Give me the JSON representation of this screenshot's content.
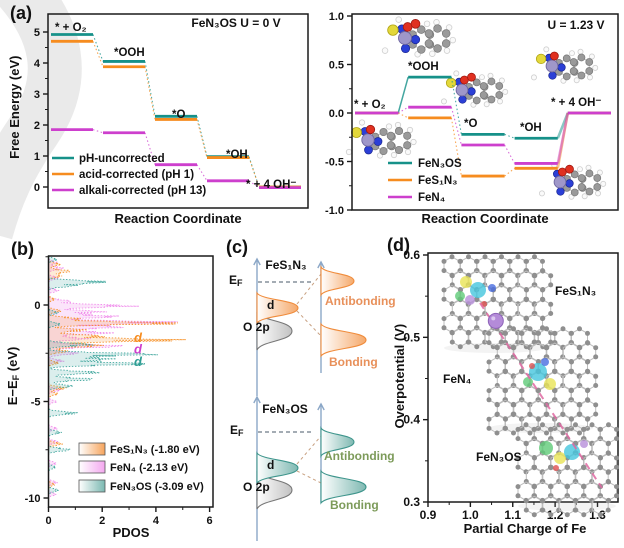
{
  "figure_labels": {
    "a": "(a)",
    "b": "(b)",
    "c": "(c)",
    "d": "(d)"
  },
  "chart_data": [
    {
      "id": "free-energy-u0",
      "type": "line",
      "panel": "a-left",
      "title": "FeN₃OS  U = 0 V",
      "xlabel": "Reaction Coordinate",
      "ylabel": "Free Energy (eV)",
      "ylim": [
        -0.45,
        5.6
      ],
      "yticks": [
        0,
        1,
        2,
        3,
        4,
        5
      ],
      "grid": false,
      "categories": [
        "* + O₂",
        "*OOH",
        "*O",
        "*OH",
        "* + 4 OH⁻"
      ],
      "series": [
        {
          "name": "pH-uncorrected",
          "color": "#169189",
          "values": [
            4.92,
            4.05,
            2.28,
            0.98,
            0.0
          ]
        },
        {
          "name": "acid-corrected (pH 1)",
          "color": "#f68c1f",
          "values": [
            4.7,
            3.88,
            2.18,
            0.95,
            0.0
          ]
        },
        {
          "name": "alkali-corrected (pH 13)",
          "color": "#cd3fcd",
          "values": [
            1.85,
            1.75,
            0.72,
            0.2,
            -0.02
          ]
        }
      ],
      "legend_position": "lower-left"
    },
    {
      "id": "free-energy-u123",
      "type": "line",
      "panel": "a-right",
      "title": "U = 1.23 V",
      "xlabel": "Reaction Coordinate",
      "ylabel": "",
      "ylim": [
        -1.05,
        1.02
      ],
      "yticks": [
        "1.0",
        "0.5",
        "0.0",
        "-0.5",
        "-1.0"
      ],
      "grid": false,
      "categories": [
        "* + O₂",
        "*OOH",
        "*O",
        "*OH",
        "* + 4 OH⁻"
      ],
      "series": [
        {
          "name": "FeN₃OS",
          "color": "#169189",
          "values": [
            0.0,
            0.37,
            -0.22,
            -0.26,
            0.0
          ]
        },
        {
          "name": "FeS₁N₃",
          "color": "#f68c1f",
          "values": [
            0.0,
            -0.05,
            -0.65,
            -0.57,
            0.0
          ]
        },
        {
          "name": "FeN₄",
          "color": "#cd3fcd",
          "values": [
            0.0,
            0.06,
            -0.33,
            -0.52,
            0.0
          ]
        }
      ],
      "legend_position": "lower-center"
    },
    {
      "id": "pdos",
      "type": "area",
      "panel": "b",
      "xlabel": "PDOS",
      "ylabel_pre": "E−E",
      "ylabel_sub": "F",
      "ylabel_post": " (eV)",
      "xlim": [
        0,
        6
      ],
      "ylim": [
        -10.5,
        2.55
      ],
      "xticks": [
        0,
        2,
        4,
        6
      ],
      "yticks": [
        0,
        -5,
        -10
      ],
      "grid": false,
      "series": [
        {
          "name": "FeS₁N₃",
          "legend": "FeS₁N₃ (-1.80 eV)",
          "color": "#f68c1f",
          "d_band_center_eV": -1.8,
          "peaks": [
            [
              2.1,
              0.5
            ],
            [
              1.75,
              0.9
            ],
            [
              1.5,
              0.5
            ],
            [
              0.3,
              0.25
            ],
            [
              -0.3,
              0.5
            ],
            [
              -0.7,
              1.2
            ],
            [
              -0.95,
              5.4
            ],
            [
              -1.3,
              1.5
            ],
            [
              -1.6,
              2.0
            ],
            [
              -1.82,
              5.3
            ],
            [
              -2.1,
              2.2
            ],
            [
              -2.4,
              0.8
            ],
            [
              -3.0,
              0.4
            ],
            [
              -4.3,
              0.7
            ],
            [
              -4.6,
              0.4
            ],
            [
              -7.2,
              0.55
            ],
            [
              -9.3,
              0.25
            ]
          ]
        },
        {
          "name": "FeN₄",
          "legend": "FeN₄ (-2.13 eV)",
          "color": "#ef86ea",
          "d_band_center_eV": -2.13,
          "peaks": [
            [
              2.2,
              0.35
            ],
            [
              1.9,
              0.6
            ],
            [
              1.4,
              0.4
            ],
            [
              0.75,
              0.4
            ],
            [
              0.2,
              0.9
            ],
            [
              -0.05,
              3.4
            ],
            [
              -0.35,
              2.2
            ],
            [
              -0.6,
              2.8
            ],
            [
              -0.9,
              5.2
            ],
            [
              -1.15,
              3.0
            ],
            [
              -1.45,
              2.6
            ],
            [
              -1.75,
              1.6
            ],
            [
              -2.13,
              3.1
            ],
            [
              -2.5,
              1.2
            ],
            [
              -2.9,
              0.6
            ],
            [
              -4.4,
              0.5
            ],
            [
              -5.0,
              0.3
            ],
            [
              -6.4,
              0.35
            ],
            [
              -7.1,
              0.4
            ],
            [
              -8.2,
              0.3
            ],
            [
              -9.2,
              0.35
            ],
            [
              -9.8,
              0.3
            ]
          ]
        },
        {
          "name": "FeN₃OS",
          "legend": "FeN₃OS (-3.09 eV)",
          "color": "#3aa39a",
          "d_band_center_eV": -3.09,
          "peaks": [
            [
              2.35,
              0.35
            ],
            [
              1.2,
              2.3
            ],
            [
              1.0,
              1.0
            ],
            [
              -0.4,
              0.4
            ],
            [
              -1.0,
              0.5
            ],
            [
              -2.05,
              1.8
            ],
            [
              -2.55,
              4.4
            ],
            [
              -2.8,
              2.5
            ],
            [
              -3.05,
              4.1
            ],
            [
              -3.5,
              2.1
            ],
            [
              -3.85,
              1.9
            ],
            [
              -4.2,
              1.0
            ],
            [
              -5.6,
              1.15
            ],
            [
              -6.6,
              0.5
            ],
            [
              -7.5,
              0.9
            ],
            [
              -8.4,
              0.3
            ],
            [
              -9.6,
              0.4
            ]
          ]
        }
      ],
      "d_annotations": [
        {
          "text": "d",
          "E": -1.7,
          "color": "#f68c1f"
        },
        {
          "text": "d",
          "E": -2.3,
          "color": "#cd3fcd"
        },
        {
          "text": "d",
          "E": -2.95,
          "color": "#2e9d94"
        }
      ]
    },
    {
      "id": "overpotential",
      "type": "scatter",
      "panel": "d",
      "xlabel": "Partial Charge of Fe",
      "ylabel": "Overpotential (V)",
      "xlim": [
        0.9,
        1.345
      ],
      "ylim": [
        0.3,
        0.6
      ],
      "xticks": [
        "0.9",
        "1.0",
        "1.1",
        "1.2",
        "1.3"
      ],
      "yticks": [
        "0.6",
        "0.5",
        "0.4",
        "0.3"
      ],
      "grid": false,
      "points": [
        {
          "name": "FeS₁N₃",
          "x": 1.06,
          "y": 0.52
        },
        {
          "name": "FeN₄",
          "x": 1.13,
          "y": 0.46
        },
        {
          "name": "FeN₃OS",
          "x": 1.23,
          "y": 0.37
        }
      ],
      "trend_color": "#e06aa3"
    }
  ],
  "panel_c": {
    "diagrams": [
      {
        "title": "FeS₁N₃",
        "ef_base": "E",
        "ef_sub": "F",
        "d_label": "d",
        "o2p_label": "O 2p",
        "antibonding_label": "Antibonding",
        "bonding_label": "Bonding",
        "peak_color": "#f08c3c",
        "text_color": "#e8905a"
      },
      {
        "title": "FeN₃OS",
        "ef_base": "E",
        "ef_sub": "F",
        "d_label": "d",
        "o2p_label": "O 2p",
        "antibonding_label": "Antibonding",
        "bonding_label": "Bonding",
        "peak_color": "#3e958c",
        "text_color": "#7d9b5a"
      }
    ]
  }
}
